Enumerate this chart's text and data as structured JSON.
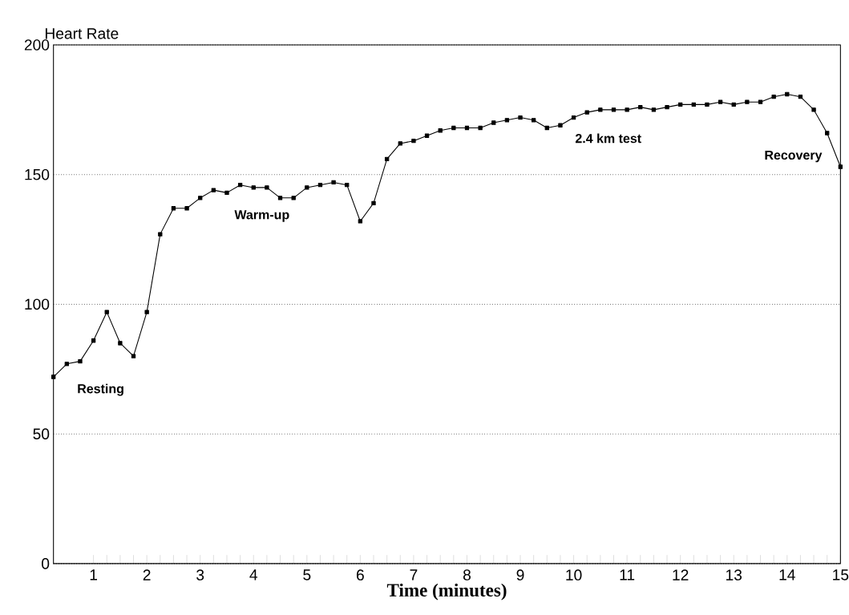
{
  "chart_data": {
    "type": "line",
    "ylabel": "Heart Rate",
    "xlabel": "Time (minutes)",
    "x": [
      0.25,
      0.5,
      0.75,
      1,
      1.25,
      1.5,
      1.75,
      2,
      2.25,
      2.5,
      2.75,
      3,
      3.25,
      3.5,
      3.75,
      4,
      4.25,
      4.5,
      4.75,
      5,
      5.25,
      5.5,
      5.75,
      6,
      6.25,
      6.5,
      6.75,
      7,
      7.25,
      7.5,
      7.75,
      8,
      8.25,
      8.5,
      8.75,
      9,
      9.25,
      9.5,
      9.75,
      10,
      10.25,
      10.5,
      10.75,
      11,
      11.25,
      11.5,
      11.75,
      12,
      12.25,
      12.5,
      12.75,
      13,
      13.25,
      13.5,
      13.75,
      14,
      14.25,
      14.5,
      14.75,
      15
    ],
    "values": [
      72,
      77,
      78,
      86,
      97,
      85,
      80,
      97,
      127,
      137,
      137,
      141,
      144,
      143,
      146,
      145,
      145,
      141,
      141,
      145,
      146,
      147,
      146,
      132,
      139,
      156,
      162,
      163,
      165,
      167,
      168,
      168,
      168,
      170,
      171,
      172,
      171,
      168,
      169,
      172,
      174,
      175,
      175,
      175,
      176,
      175,
      176,
      177,
      177,
      177,
      178,
      177,
      178,
      178,
      180,
      181,
      180,
      175,
      166,
      153
    ],
    "color": "#000000",
    "marker": "square",
    "line_style": "solid",
    "grid": "y",
    "xlim": [
      0.25,
      15
    ],
    "ylim": [
      0,
      200
    ],
    "xticks": [
      1,
      2,
      3,
      4,
      5,
      6,
      7,
      8,
      9,
      10,
      11,
      12,
      13,
      14,
      15
    ],
    "yticks": [
      0,
      50,
      100,
      150,
      200
    ],
    "annotations": [
      "Resting",
      "Warm-up",
      "2.4 km test",
      "Recovery"
    ]
  }
}
